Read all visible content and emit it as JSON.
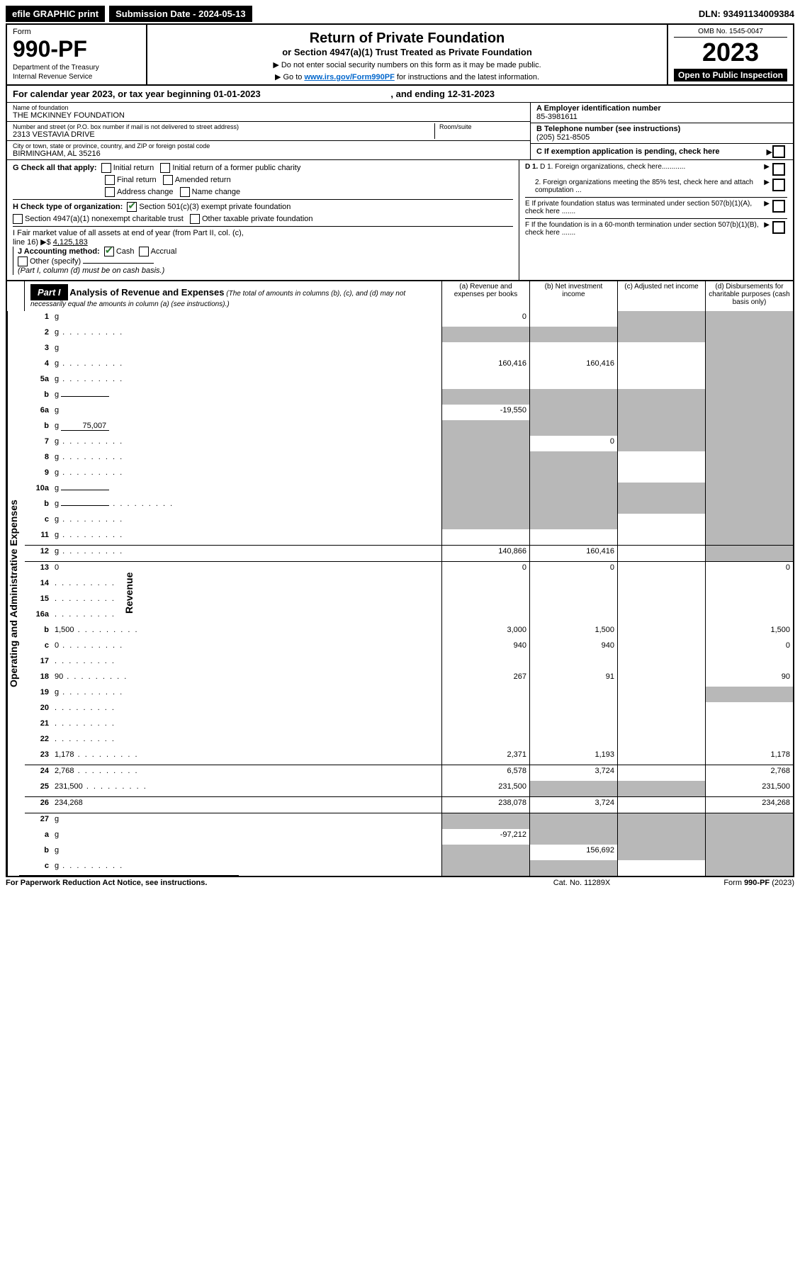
{
  "topbar": {
    "efile": "efile GRAPHIC print",
    "submission_label": "Submission Date - ",
    "submission_date": "2024-05-13",
    "dln_label": "DLN: ",
    "dln": "93491134009384"
  },
  "header": {
    "form_word": "Form",
    "form_num": "990-PF",
    "dept1": "Department of the Treasury",
    "dept2": "Internal Revenue Service",
    "title": "Return of Private Foundation",
    "subtitle": "or Section 4947(a)(1) Trust Treated as Private Foundation",
    "inst1": "▶ Do not enter social security numbers on this form as it may be made public.",
    "inst2_pre": "▶ Go to ",
    "inst2_link": "www.irs.gov/Form990PF",
    "inst2_post": " for instructions and the latest information.",
    "omb": "OMB No. 1545-0047",
    "year": "2023",
    "open": "Open to Public Inspection"
  },
  "period": {
    "text_pre": "For calendar year 2023, or tax year beginning ",
    "begin": "01-01-2023",
    "text_mid": " , and ending ",
    "end": "12-31-2023"
  },
  "ident": {
    "name_label": "Name of foundation",
    "name": "THE MCKINNEY FOUNDATION",
    "addr_label": "Number and street (or P.O. box number if mail is not delivered to street address)",
    "addr": "2313 VESTAVIA DRIVE",
    "room_label": "Room/suite",
    "city_label": "City or town, state or province, country, and ZIP or foreign postal code",
    "city": "BIRMINGHAM, AL  35216",
    "ein_label": "A Employer identification number",
    "ein": "85-3981611",
    "phone_label": "B Telephone number (see instructions)",
    "phone": "(205) 521-8505",
    "c_label": "C If exemption application is pending, check here"
  },
  "checks": {
    "g_label": "G Check all that apply:",
    "g1": "Initial return",
    "g2": "Initial return of a former public charity",
    "g3": "Final return",
    "g4": "Amended return",
    "g5": "Address change",
    "g6": "Name change",
    "h_label": "H Check type of organization:",
    "h1": "Section 501(c)(3) exempt private foundation",
    "h2": "Section 4947(a)(1) nonexempt charitable trust",
    "h3": "Other taxable private foundation",
    "i_label": "I Fair market value of all assets at end of year (from Part II, col. (c), line 16) ▶$ ",
    "i_val": "4,125,183",
    "j_label": "J Accounting method:",
    "j1": "Cash",
    "j2": "Accrual",
    "j3": "Other (specify)",
    "j_note": "(Part I, column (d) must be on cash basis.)",
    "d1": "D 1. Foreign organizations, check here............",
    "d2": "2. Foreign organizations meeting the 85% test, check here and attach computation ...",
    "e": "E  If private foundation status was terminated under section 507(b)(1)(A), check here .......",
    "f": "F  If the foundation is in a 60-month termination under section 507(b)(1)(B), check here .......",
    "arrow": "▶"
  },
  "part1": {
    "label": "Part I",
    "title": "Analysis of Revenue and Expenses",
    "note": "(The total of amounts in columns (b), (c), and (d) may not necessarily equal the amounts in column (a) (see instructions).)",
    "col_a": "(a)  Revenue and expenses per books",
    "col_b": "(b)  Net investment income",
    "col_c": "(c)  Adjusted net income",
    "col_d": "(d)  Disbursements for charitable purposes (cash basis only)",
    "sidebar_rev": "Revenue",
    "sidebar_exp": "Operating and Administrative Expenses"
  },
  "rows": [
    {
      "n": "1",
      "d": "g",
      "a": "0",
      "b": "",
      "c": "g"
    },
    {
      "n": "2",
      "d": "g",
      "a": "g",
      "b": "g",
      "c": "g",
      "dots": true
    },
    {
      "n": "3",
      "d": "g",
      "a": "",
      "b": "",
      "c": ""
    },
    {
      "n": "4",
      "d": "g",
      "a": "160,416",
      "b": "160,416",
      "c": "",
      "dots": true
    },
    {
      "n": "5a",
      "d": "g",
      "a": "",
      "b": "",
      "c": "",
      "dots": true
    },
    {
      "n": "b",
      "d": "g",
      "a": "g",
      "b": "g",
      "c": "g",
      "inline": ""
    },
    {
      "n": "6a",
      "d": "g",
      "a": "-19,550",
      "b": "g",
      "c": "g"
    },
    {
      "n": "b",
      "d": "g",
      "a": "g",
      "b": "g",
      "c": "g",
      "inline": "75,007"
    },
    {
      "n": "7",
      "d": "g",
      "a": "g",
      "b": "0",
      "c": "g",
      "dots": true
    },
    {
      "n": "8",
      "d": "g",
      "a": "g",
      "b": "g",
      "c": "",
      "dots": true
    },
    {
      "n": "9",
      "d": "g",
      "a": "g",
      "b": "g",
      "c": "",
      "dots": true
    },
    {
      "n": "10a",
      "d": "g",
      "a": "g",
      "b": "g",
      "c": "g",
      "inline": ""
    },
    {
      "n": "b",
      "d": "g",
      "a": "g",
      "b": "g",
      "c": "g",
      "inline": "",
      "dots": true
    },
    {
      "n": "c",
      "d": "g",
      "a": "g",
      "b": "g",
      "c": "",
      "dots": true
    },
    {
      "n": "11",
      "d": "g",
      "a": "",
      "b": "",
      "c": "",
      "dots": true
    },
    {
      "n": "12",
      "d": "g",
      "a": "140,866",
      "b": "160,416",
      "c": "",
      "dots": true,
      "bt": true
    },
    {
      "n": "13",
      "d": "0",
      "a": "0",
      "b": "0",
      "c": "",
      "bt": true
    },
    {
      "n": "14",
      "d": "",
      "a": "",
      "b": "",
      "c": "",
      "dots": true
    },
    {
      "n": "15",
      "d": "",
      "a": "",
      "b": "",
      "c": "",
      "dots": true
    },
    {
      "n": "16a",
      "d": "",
      "a": "",
      "b": "",
      "c": "",
      "dots": true
    },
    {
      "n": "b",
      "d": "1,500",
      "a": "3,000",
      "b": "1,500",
      "c": "",
      "dots": true
    },
    {
      "n": "c",
      "d": "0",
      "a": "940",
      "b": "940",
      "c": "",
      "dots": true
    },
    {
      "n": "17",
      "d": "",
      "a": "",
      "b": "",
      "c": "",
      "dots": true
    },
    {
      "n": "18",
      "d": "90",
      "a": "267",
      "b": "91",
      "c": "",
      "dots": true
    },
    {
      "n": "19",
      "d": "g",
      "a": "",
      "b": "",
      "c": "",
      "dots": true
    },
    {
      "n": "20",
      "d": "",
      "a": "",
      "b": "",
      "c": "",
      "dots": true
    },
    {
      "n": "21",
      "d": "",
      "a": "",
      "b": "",
      "c": "",
      "dots": true
    },
    {
      "n": "22",
      "d": "",
      "a": "",
      "b": "",
      "c": "",
      "dots": true
    },
    {
      "n": "23",
      "d": "1,178",
      "a": "2,371",
      "b": "1,193",
      "c": "",
      "dots": true
    },
    {
      "n": "24",
      "d": "2,768",
      "a": "6,578",
      "b": "3,724",
      "c": "",
      "dots": true,
      "bt": true
    },
    {
      "n": "25",
      "d": "231,500",
      "a": "231,500",
      "b": "g",
      "c": "g",
      "dots": true
    },
    {
      "n": "26",
      "d": "234,268",
      "a": "238,078",
      "b": "3,724",
      "c": "",
      "bt": true
    },
    {
      "n": "27",
      "d": "g",
      "a": "g",
      "b": "g",
      "c": "g",
      "bt": true
    },
    {
      "n": "a",
      "d": "g",
      "a": "-97,212",
      "b": "g",
      "c": "g"
    },
    {
      "n": "b",
      "d": "g",
      "a": "g",
      "b": "156,692",
      "c": "g"
    },
    {
      "n": "c",
      "d": "g",
      "a": "g",
      "b": "g",
      "c": "",
      "dots": true
    }
  ],
  "footer": {
    "left": "For Paperwork Reduction Act Notice, see instructions.",
    "center": "Cat. No. 11289X",
    "right": "Form 990-PF (2023)",
    "right_bold": "990-PF"
  }
}
